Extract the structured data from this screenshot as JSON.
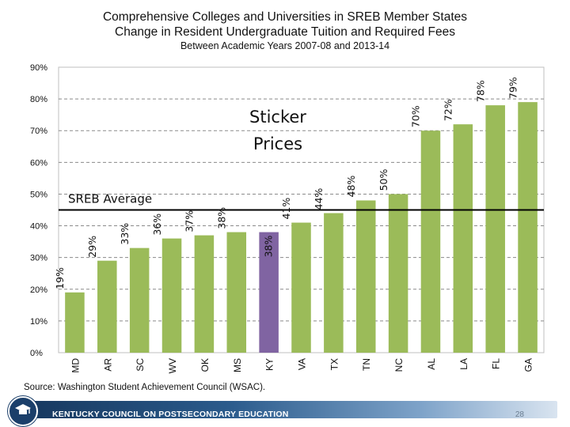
{
  "chart_data": {
    "type": "bar",
    "title": "Comprehensive Colleges and Universities in SREB Member States",
    "subtitle": "Change in Resident Undergraduate Tuition and Required Fees",
    "subtitle2": "Between Academic Years 2007-08 and 2013-14",
    "categories": [
      "MD",
      "AR",
      "SC",
      "WV",
      "OK",
      "MS",
      "KY",
      "VA",
      "TX",
      "TN",
      "NC",
      "AL",
      "LA",
      "FL",
      "GA"
    ],
    "values": [
      19,
      29,
      33,
      36,
      37,
      38,
      38,
      41,
      44,
      48,
      50,
      70,
      72,
      78,
      79
    ],
    "value_labels": [
      "19%",
      "29%",
      "33%",
      "36%",
      "37%",
      "38%",
      "38%",
      "41%",
      "44%",
      "48%",
      "50%",
      "70%",
      "72%",
      "78%",
      "79%"
    ],
    "highlight_category": "KY",
    "bar_color": "#9bbb59",
    "highlight_color": "#8064a2",
    "ylim": [
      0,
      90
    ],
    "yticks": [
      0,
      10,
      20,
      30,
      40,
      50,
      60,
      70,
      80,
      90
    ],
    "ytick_labels": [
      "0%",
      "10%",
      "20%",
      "30%",
      "40%",
      "50%",
      "60%",
      "70%",
      "80%",
      "90%"
    ],
    "reference_line": {
      "label": "SREB Average",
      "value": 45
    },
    "annotation": [
      "Sticker",
      "Prices"
    ],
    "grid": true,
    "xlabel": "",
    "ylabel": ""
  },
  "source": "Source: Washington Student Achievement Council (WSAC).",
  "footer": {
    "org": "KENTUCKY COUNCIL ON POSTSECONDARY EDUCATION",
    "page": "28"
  }
}
